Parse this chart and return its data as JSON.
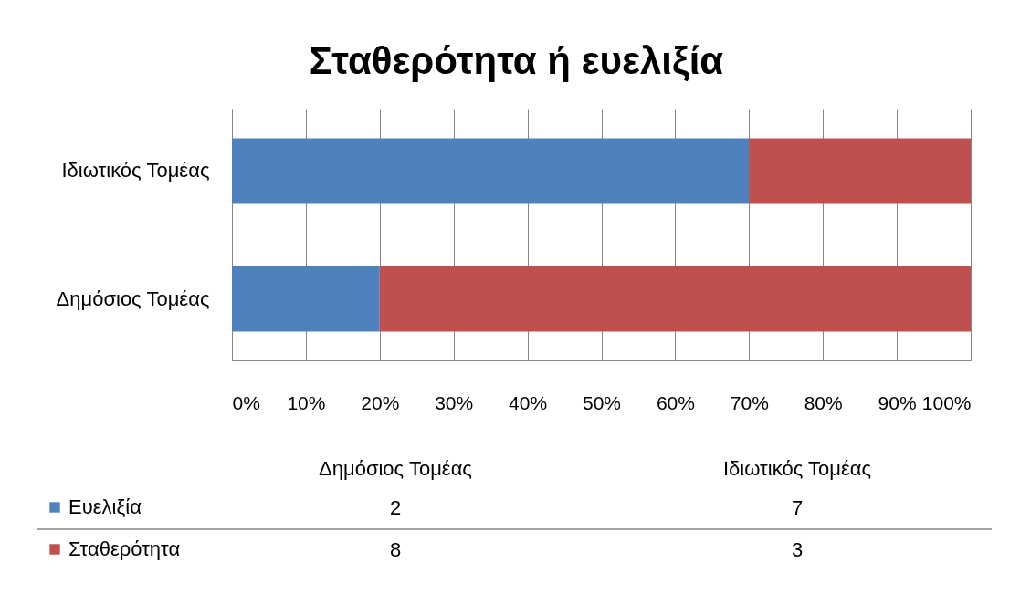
{
  "chart_data": [
    {
      "type": "bar",
      "title": "Σταθερότητα ή ευελιξία",
      "orientation": "horizontal",
      "stacked": true,
      "categories": [
        "Ιδιωτικός Τομέας",
        "Δημόσιος Τομέας"
      ],
      "series": [
        {
          "name": "Ευελιξία",
          "color": "#4f81bd",
          "values": [
            70,
            20
          ]
        },
        {
          "name": "Σταθερότητα",
          "color": "#c0504d",
          "values": [
            30,
            80
          ]
        }
      ],
      "xlim": [
        0,
        100
      ],
      "xticks": [
        {
          "value": 0,
          "label": "0%"
        },
        {
          "value": 10,
          "label": "10%"
        },
        {
          "value": 20,
          "label": "20%"
        },
        {
          "value": 30,
          "label": "30%"
        },
        {
          "value": 40,
          "label": "40%"
        },
        {
          "value": 50,
          "label": "50%"
        },
        {
          "value": 60,
          "label": "60%"
        },
        {
          "value": 70,
          "label": "70%"
        },
        {
          "value": 80,
          "label": "80%"
        },
        {
          "value": 90,
          "label": "90%"
        },
        {
          "value": 100,
          "label": "100%"
        }
      ],
      "grid": "x",
      "legend": "bottom"
    },
    {
      "type": "other",
      "categories": [
        "Δημόσιος Τομέας",
        "Ιδιωτικός Τομέας"
      ],
      "series": [
        {
          "values": [
            2,
            7
          ]
        },
        {
          "values": [
            8,
            3
          ]
        }
      ],
      "data_labels": true
    }
  ]
}
